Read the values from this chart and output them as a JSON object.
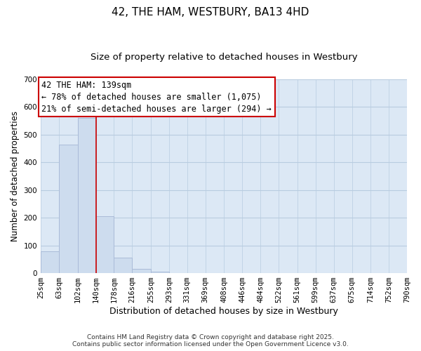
{
  "title": "42, THE HAM, WESTBURY, BA13 4HD",
  "subtitle": "Size of property relative to detached houses in Westbury",
  "xlabel": "Distribution of detached houses by size in Westbury",
  "ylabel": "Number of detached properties",
  "bar_edges": [
    25,
    63,
    102,
    140,
    178,
    216,
    255,
    293,
    331,
    369,
    408,
    446,
    484,
    522,
    561,
    599,
    637,
    675,
    714,
    752,
    790
  ],
  "bar_heights": [
    78,
    465,
    560,
    205,
    57,
    15,
    5,
    0,
    0,
    0,
    0,
    0,
    0,
    0,
    0,
    0,
    0,
    0,
    0,
    0
  ],
  "bar_color": "#cddcee",
  "bar_edgecolor": "#aabbd8",
  "grid_color": "#b8cce0",
  "bg_color": "#dce8f5",
  "vline_x": 140,
  "vline_color": "#cc0000",
  "ylim": [
    0,
    700
  ],
  "yticks": [
    0,
    100,
    200,
    300,
    400,
    500,
    600,
    700
  ],
  "annotation_title": "42 THE HAM: 139sqm",
  "annotation_line1": "← 78% of detached houses are smaller (1,075)",
  "annotation_line2": "21% of semi-detached houses are larger (294) →",
  "annotation_box_color": "#cc0000",
  "footer1": "Contains HM Land Registry data © Crown copyright and database right 2025.",
  "footer2": "Contains public sector information licensed under the Open Government Licence v3.0.",
  "title_fontsize": 11,
  "subtitle_fontsize": 9.5,
  "xlabel_fontsize": 9,
  "ylabel_fontsize": 8.5,
  "tick_fontsize": 7.5,
  "annotation_fontsize": 8.5,
  "footer_fontsize": 6.5
}
